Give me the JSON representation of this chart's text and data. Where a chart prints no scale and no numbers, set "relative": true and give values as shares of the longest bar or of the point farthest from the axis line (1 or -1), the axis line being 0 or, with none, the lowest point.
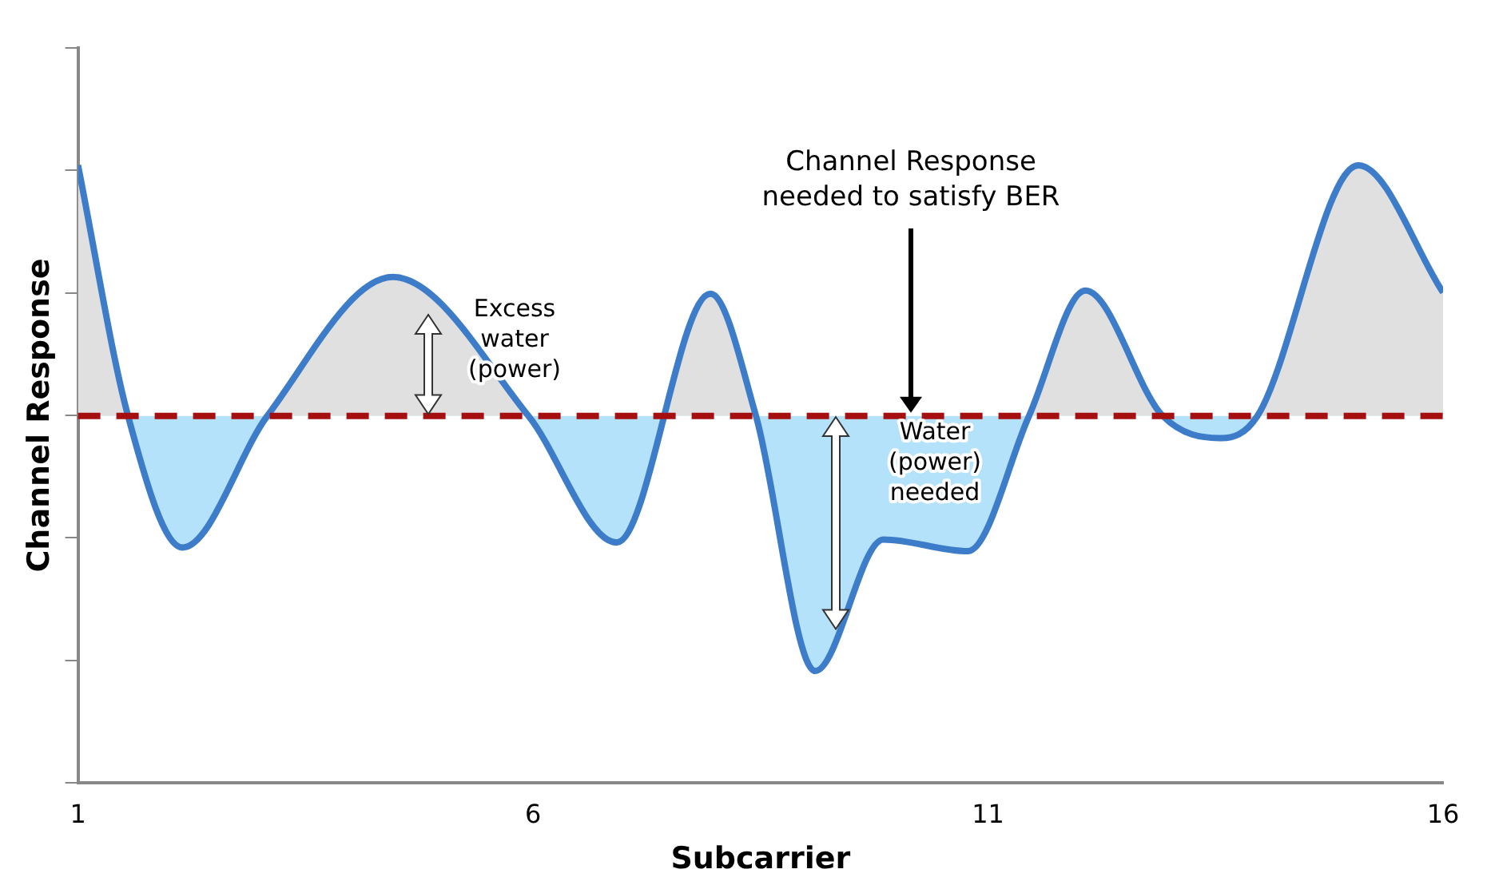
{
  "chart_data": {
    "type": "area",
    "relative": true,
    "xlabel": "Subcarrier",
    "ylabel": "Channel Response",
    "xlim": [
      1,
      16
    ],
    "xticks": [
      1,
      6,
      11,
      16
    ],
    "series": [
      {
        "color": "#3d7cc9",
        "x": [
          1,
          1.55,
          2.15,
          3.08,
          4.46,
          5.95,
          6.92,
          7.95,
          8.45,
          9.1,
          9.85,
          10.78,
          11.45,
          12.07,
          12.92,
          13.56,
          13.96,
          15.07,
          16
        ],
        "values": [
          1.0,
          0.594,
          0.381,
          0.594,
          0.819,
          0.594,
          0.389,
          0.792,
          0.594,
          0.181,
          0.394,
          0.375,
          0.594,
          0.797,
          0.594,
          0.558,
          0.594,
          1.0,
          0.794
        ]
      }
    ],
    "ref_lines": [
      {
        "axis": "y",
        "value": 0.594,
        "color": "#a50f0f",
        "line_style": "dashed"
      }
    ],
    "annotations": [
      "Channel Response\nneeded to satisfy BER",
      "Excess\nwater\n(power)",
      "Water\n(power)\nneeded"
    ],
    "grid": false,
    "legend": false,
    "marker": "none"
  }
}
